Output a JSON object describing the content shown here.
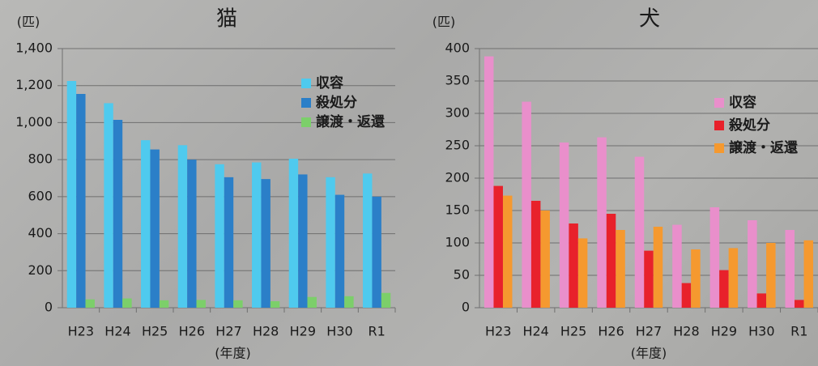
{
  "chart_data": [
    {
      "type": "bar",
      "title": "猫",
      "y_label": "(匹)",
      "x_label": "(年度)",
      "categories": [
        "H23",
        "H24",
        "H25",
        "H26",
        "H27",
        "H28",
        "H29",
        "H30",
        "R1"
      ],
      "series": [
        {
          "name": "収容",
          "color": "#4fcaee",
          "values": [
            1225,
            1105,
            905,
            878,
            775,
            785,
            805,
            705,
            725
          ]
        },
        {
          "name": "殺処分",
          "color": "#2b7fc8",
          "values": [
            1155,
            1015,
            855,
            800,
            705,
            695,
            720,
            610,
            600
          ]
        },
        {
          "name": "譲渡・返還",
          "color": "#7ccf6a",
          "values": [
            45,
            50,
            40,
            42,
            40,
            35,
            58,
            62,
            80
          ]
        }
      ],
      "ylim": [
        0,
        1400
      ],
      "yticks": [
        0,
        200,
        400,
        600,
        800,
        {
          "value": 1000,
          "label": "1,000"
        },
        {
          "value": 1200,
          "label": "1,200"
        },
        {
          "value": 1400,
          "label": "1,400"
        }
      ],
      "grid": true
    },
    {
      "type": "bar",
      "title": "犬",
      "y_label": "(匹)",
      "x_label": "(年度)",
      "categories": [
        "H23",
        "H24",
        "H25",
        "H26",
        "H27",
        "H28",
        "H29",
        "H30",
        "R1"
      ],
      "series": [
        {
          "name": "収容",
          "color": "#e98fcb",
          "values": [
            388,
            318,
            255,
            263,
            233,
            128,
            155,
            135,
            120
          ]
        },
        {
          "name": "殺処分",
          "color": "#e8212b",
          "values": [
            188,
            165,
            130,
            145,
            88,
            38,
            58,
            22,
            12
          ]
        },
        {
          "name": "譲渡・返還",
          "color": "#f5992f",
          "values": [
            173,
            150,
            107,
            120,
            125,
            90,
            92,
            100,
            104
          ]
        }
      ],
      "ylim": [
        0,
        400
      ],
      "yticks": [
        0,
        50,
        100,
        150,
        200,
        250,
        300,
        350,
        400
      ],
      "grid": true
    }
  ]
}
